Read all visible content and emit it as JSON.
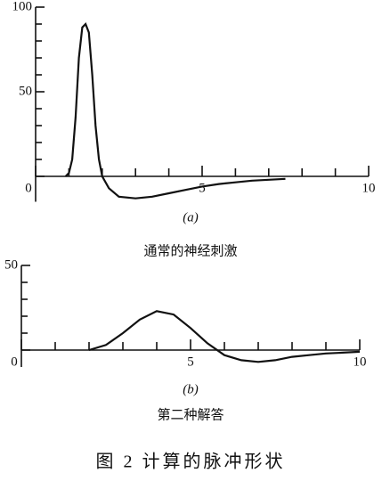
{
  "chart_data": [
    {
      "type": "line",
      "label": "(a)",
      "caption": "通常的神经刺激",
      "x": [
        0.9,
        1.0,
        1.1,
        1.2,
        1.3,
        1.4,
        1.5,
        1.6,
        1.7,
        1.8,
        1.9,
        2.0,
        2.2,
        2.5,
        3.0,
        3.5,
        4,
        4.5,
        5,
        5.5,
        6,
        6.5,
        7,
        7.5
      ],
      "values": [
        0,
        2,
        10,
        35,
        70,
        88,
        90,
        85,
        60,
        30,
        10,
        0,
        -7,
        -12,
        -13,
        -12,
        -10,
        -8,
        -6,
        -4.5,
        -3.5,
        -2.5,
        -2,
        -1.5
      ],
      "color": "#111111",
      "xlim": [
        0,
        10
      ],
      "ylim": [
        -15,
        100
      ],
      "xticks": [
        0,
        5,
        10
      ],
      "yticks": [
        0,
        50,
        100
      ],
      "x_minor_ticks": [
        1,
        2,
        3,
        4,
        6,
        7,
        8,
        9
      ],
      "y_minor_ticks": [
        10,
        20,
        30,
        40,
        60,
        70,
        80,
        90
      ]
    },
    {
      "type": "line",
      "label": "(b)",
      "caption": "第二种解答",
      "x": [
        2,
        2.5,
        3,
        3.5,
        4,
        4.5,
        5,
        5.5,
        6,
        6.5,
        7,
        7.5,
        8,
        8.5,
        9,
        9.5,
        10
      ],
      "values": [
        0,
        3,
        10,
        18,
        23,
        21,
        13,
        4,
        -3,
        -6,
        -7,
        -6,
        -4,
        -3,
        -2,
        -1.5,
        -1
      ],
      "color": "#111111",
      "xlim": [
        0,
        10
      ],
      "ylim": [
        -10,
        50
      ],
      "xticks": [
        0,
        5,
        10
      ],
      "yticks": [
        0,
        50
      ],
      "x_minor_ticks": [
        1,
        2,
        3,
        4,
        6,
        7,
        8,
        9
      ],
      "y_minor_ticks": [
        10,
        20,
        30,
        40
      ]
    }
  ],
  "figure_caption": "图 2  计算的脉冲形状"
}
